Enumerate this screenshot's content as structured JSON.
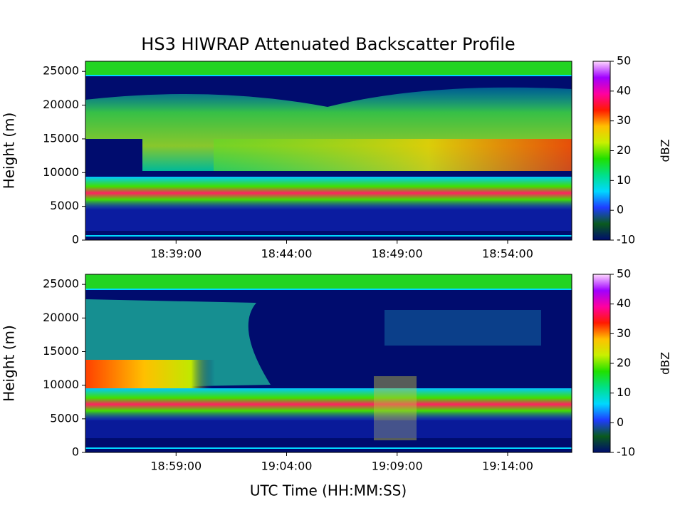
{
  "title": "HS3 HIWRAP Attenuated Backscatter Profile",
  "xlabel": "UTC Time (HH:MM:SS)",
  "chart_data": [
    {
      "type": "heatmap",
      "ylabel": "Height (m)",
      "xlim": [
        "18:34:54",
        "18:56:54"
      ],
      "xticks": [
        "18:39:00",
        "18:44:00",
        "18:49:00",
        "18:54:00"
      ],
      "ylim": [
        0,
        26500
      ],
      "yticks": [
        0,
        5000,
        10000,
        15000,
        20000,
        25000
      ],
      "colorbar": {
        "label": "dBZ",
        "lim": [
          -10,
          50
        ],
        "ticks": [
          -10,
          0,
          10,
          20,
          30,
          40,
          50
        ],
        "colormap": [
          "#000c6e",
          "#0a5a1e",
          "#1f3cff",
          "#00d8ff",
          "#00e08a",
          "#20e000",
          "#c8f000",
          "#ffc000",
          "#ff1a00",
          "#ff00a0",
          "#a000ff",
          "#ffd8ff"
        ]
      }
    },
    {
      "type": "heatmap",
      "ylabel": "Height (m)",
      "xlim": [
        "18:54:54",
        "19:16:54"
      ],
      "xticks": [
        "18:59:00",
        "19:04:00",
        "19:09:00",
        "19:14:00"
      ],
      "ylim": [
        0,
        26500
      ],
      "yticks": [
        0,
        5000,
        10000,
        15000,
        20000,
        25000
      ],
      "colorbar": {
        "label": "dBZ",
        "lim": [
          -10,
          50
        ],
        "ticks": [
          -10,
          0,
          10,
          20,
          30,
          40,
          50
        ],
        "colormap": [
          "#000c6e",
          "#0a5a1e",
          "#1f3cff",
          "#00d8ff",
          "#00e08a",
          "#20e000",
          "#c8f000",
          "#ffc000",
          "#ff1a00",
          "#ff00a0",
          "#a000ff",
          "#ffd8ff"
        ]
      }
    }
  ]
}
